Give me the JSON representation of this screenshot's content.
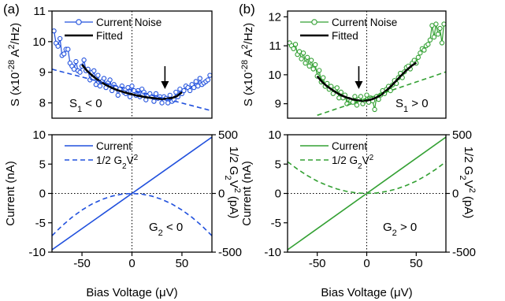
{
  "chart_data": [
    {
      "panel": "(a)",
      "type": "line",
      "ylabel_parts": [
        "S (x10",
        "-28",
        " A",
        "2",
        "/Hz)"
      ],
      "xlim": [
        -80,
        80
      ],
      "ylim": [
        7.5,
        11
      ],
      "yticks": [
        8,
        9,
        10,
        11
      ],
      "annotation": {
        "main": "S",
        "sub": "1",
        "rest": " < 0"
      },
      "arrow_at_x": 33,
      "color": "#2050dd",
      "legend": [
        "Current Noise",
        "Fitted"
      ],
      "series": [
        {
          "name": "Current Noise",
          "style": "line-markers",
          "x": [
            -78,
            -76,
            -74,
            -72,
            -70,
            -68,
            -66,
            -64,
            -62,
            -60,
            -58,
            -56,
            -54,
            -52,
            -50,
            -48,
            -46,
            -44,
            -42,
            -40,
            -38,
            -36,
            -34,
            -32,
            -30,
            -28,
            -26,
            -24,
            -22,
            -20,
            -18,
            -16,
            -14,
            -12,
            -10,
            -8,
            -6,
            -4,
            -2,
            0,
            2,
            4,
            6,
            8,
            10,
            12,
            14,
            16,
            18,
            20,
            22,
            24,
            26,
            28,
            30,
            32,
            34,
            36,
            38,
            40,
            42,
            44,
            46,
            48,
            50,
            52,
            54,
            56,
            58,
            60,
            62,
            64,
            66,
            68,
            70,
            72,
            74,
            76,
            78
          ],
          "y": [
            10.35,
            9.95,
            9.85,
            10.1,
            9.55,
            9.6,
            9.75,
            9.75,
            9.3,
            9.2,
            9.1,
            9.35,
            9.05,
            9.0,
            9.2,
            9.4,
            9.05,
            9.1,
            8.75,
            9.0,
            9.05,
            8.6,
            8.9,
            8.55,
            8.7,
            8.8,
            8.5,
            8.65,
            8.75,
            8.4,
            8.6,
            8.5,
            8.25,
            8.45,
            8.55,
            8.35,
            8.3,
            8.5,
            8.2,
            8.55,
            8.4,
            8.25,
            8.4,
            8.2,
            8.45,
            8.35,
            8.1,
            8.25,
            8.3,
            8.2,
            8.05,
            8.3,
            8.15,
            8.2,
            8.0,
            8.2,
            8.15,
            8.0,
            8.25,
            8.05,
            8.1,
            8.35,
            8.2,
            8.45,
            8.3,
            8.4,
            8.55,
            8.5,
            8.4,
            8.6,
            8.5,
            8.7,
            8.55,
            8.8,
            8.6,
            8.65,
            8.7,
            8.75,
            8.9
          ]
        },
        {
          "name": "Fitted",
          "style": "thick-line",
          "x": [
            -50,
            -45,
            -40,
            -35,
            -30,
            -25,
            -20,
            -15,
            -10,
            -5,
            0,
            5,
            10,
            15,
            20,
            25,
            30,
            35,
            40,
            45,
            50
          ],
          "y": [
            9.25,
            9.05,
            8.9,
            8.77,
            8.66,
            8.57,
            8.49,
            8.42,
            8.37,
            8.32,
            8.28,
            8.24,
            8.21,
            8.18,
            8.16,
            8.14,
            8.13,
            8.14,
            8.16,
            8.22,
            8.35
          ]
        },
        {
          "name": "",
          "style": "dashed",
          "x": [
            -80,
            -60,
            -40,
            -20,
            0,
            20,
            40,
            60,
            80
          ],
          "y": [
            9.1,
            8.93,
            8.76,
            8.59,
            8.42,
            8.25,
            8.08,
            7.91,
            7.74
          ]
        }
      ]
    },
    {
      "panel": "(b)",
      "type": "line",
      "ylabel_parts": [
        "S (x10",
        "-28",
        " A",
        "2",
        "/Hz)"
      ],
      "xlim": [
        -80,
        80
      ],
      "ylim": [
        8.5,
        12.2
      ],
      "yticks": [
        9,
        10,
        11,
        12
      ],
      "annotation": {
        "main": "S",
        "sub": "1",
        "rest": " > 0"
      },
      "arrow_at_x": -8,
      "color": "#33a033",
      "legend": [
        "Current Noise",
        "Fitted"
      ],
      "series": [
        {
          "name": "Current Noise",
          "style": "line-markers",
          "x": [
            -78,
            -76,
            -74,
            -72,
            -70,
            -68,
            -66,
            -64,
            -62,
            -60,
            -58,
            -56,
            -54,
            -52,
            -50,
            -48,
            -46,
            -44,
            -42,
            -40,
            -38,
            -36,
            -34,
            -32,
            -30,
            -28,
            -26,
            -24,
            -22,
            -20,
            -18,
            -16,
            -14,
            -12,
            -10,
            -8,
            -6,
            -4,
            -2,
            0,
            2,
            4,
            6,
            8,
            10,
            12,
            14,
            16,
            18,
            20,
            22,
            24,
            26,
            28,
            30,
            32,
            34,
            36,
            38,
            40,
            42,
            44,
            46,
            48,
            50,
            52,
            54,
            56,
            58,
            60,
            62,
            64,
            66,
            68,
            70,
            72,
            74,
            76,
            78
          ],
          "y": [
            11.1,
            11.0,
            10.9,
            11.05,
            10.7,
            10.8,
            10.55,
            10.75,
            10.4,
            10.6,
            10.3,
            10.5,
            10.2,
            10.35,
            9.95,
            10.15,
            9.75,
            9.9,
            9.6,
            9.7,
            9.5,
            9.6,
            9.35,
            9.5,
            9.55,
            9.2,
            9.4,
            9.2,
            9.3,
            9.0,
            9.15,
            9.1,
            9.05,
            9.25,
            8.95,
            9.15,
            9.25,
            9.0,
            9.1,
            9.3,
            9.05,
            9.2,
            9.1,
            8.8,
            9.25,
            9.15,
            9.3,
            9.45,
            9.35,
            9.5,
            9.6,
            9.45,
            9.65,
            9.8,
            9.7,
            9.9,
            10.05,
            9.9,
            10.1,
            10.25,
            10.3,
            10.2,
            10.4,
            10.5,
            10.4,
            10.6,
            10.75,
            10.9,
            10.85,
            11.0,
            11.05,
            11.2,
            11.7,
            11.3,
            11.75,
            11.4,
            11.6,
            11.1,
            11.75
          ]
        },
        {
          "name": "Fitted",
          "style": "thick-line",
          "x": [
            -50,
            -45,
            -40,
            -35,
            -30,
            -25,
            -20,
            -15,
            -10,
            -5,
            0,
            5,
            10,
            15,
            20,
            25,
            30,
            35,
            40,
            45,
            50
          ],
          "y": [
            9.95,
            9.75,
            9.6,
            9.48,
            9.37,
            9.28,
            9.21,
            9.16,
            9.12,
            9.1,
            9.11,
            9.15,
            9.22,
            9.32,
            9.46,
            9.62,
            9.8,
            9.98,
            10.15,
            10.3,
            10.42
          ]
        },
        {
          "name": "",
          "style": "dashed",
          "x": [
            -50,
            -30,
            -10,
            10,
            30,
            50,
            70,
            80
          ],
          "y": [
            8.6,
            8.83,
            9.06,
            9.29,
            9.52,
            9.75,
            9.98,
            10.1
          ]
        }
      ]
    },
    {
      "panel": "(a)",
      "type": "line",
      "xlabel": "Bias Voltage (μV)",
      "ylabel": "Current (nA)",
      "ylabel_right_parts": [
        "1/2 G",
        "2",
        "V",
        "2",
        " (pA)"
      ],
      "xlim": [
        -80,
        80
      ],
      "ylim": [
        -10,
        10
      ],
      "ylim_right": [
        -500,
        500
      ],
      "xticks": [
        -50,
        0,
        50
      ],
      "yticks": [
        -10,
        -5,
        0,
        5,
        10
      ],
      "yticks_right": [
        -500,
        0,
        500
      ],
      "annotation": {
        "main": "G",
        "sub": "2",
        "rest": " < 0"
      },
      "color": "#2050dd",
      "legend": [
        "Current",
        "1/2 G2V2"
      ],
      "series": [
        {
          "name": "Current",
          "axis": "left",
          "style": "solid",
          "x": [
            -80,
            80
          ],
          "y": [
            -9.6,
            9.6
          ]
        },
        {
          "name": "1/2 G2V2",
          "axis": "right",
          "style": "dashed",
          "x": [
            -80,
            -70,
            -60,
            -50,
            -40,
            -30,
            -20,
            -10,
            0,
            10,
            20,
            30,
            40,
            50,
            60,
            70,
            80
          ],
          "y": [
            -360,
            -276,
            -203,
            -141,
            -90,
            -51,
            -23,
            -6,
            0,
            -6,
            -23,
            -51,
            -90,
            -141,
            -203,
            -276,
            -360
          ]
        }
      ]
    },
    {
      "panel": "(b)",
      "type": "line",
      "xlabel": "Bias Voltage (μV)",
      "ylabel": "Current (nA)",
      "ylabel_right_parts": [
        "1/2 G",
        "2",
        "V",
        "2",
        " (pA)"
      ],
      "xlim": [
        -80,
        80
      ],
      "ylim": [
        -10,
        10
      ],
      "ylim_right": [
        -500,
        500
      ],
      "xticks": [
        -50,
        0,
        50
      ],
      "yticks": [
        -10,
        -5,
        0,
        5,
        10
      ],
      "yticks_right": [
        -500,
        0,
        500
      ],
      "annotation": {
        "main": "G",
        "sub": "2",
        "rest": " > 0"
      },
      "color": "#33a033",
      "legend": [
        "Current",
        "1/2 G2V2"
      ],
      "series": [
        {
          "name": "Current",
          "axis": "left",
          "style": "solid",
          "x": [
            -80,
            80
          ],
          "y": [
            -9.6,
            9.6
          ]
        },
        {
          "name": "1/2 G2V2",
          "axis": "right",
          "style": "dashed",
          "x": [
            -80,
            -70,
            -60,
            -50,
            -40,
            -30,
            -20,
            -10,
            0,
            10,
            20,
            30,
            40,
            50,
            60,
            70,
            80
          ],
          "y": [
            270,
            207,
            152,
            105,
            68,
            38,
            17,
            4,
            0,
            4,
            17,
            38,
            68,
            105,
            152,
            207,
            270
          ]
        }
      ]
    }
  ]
}
